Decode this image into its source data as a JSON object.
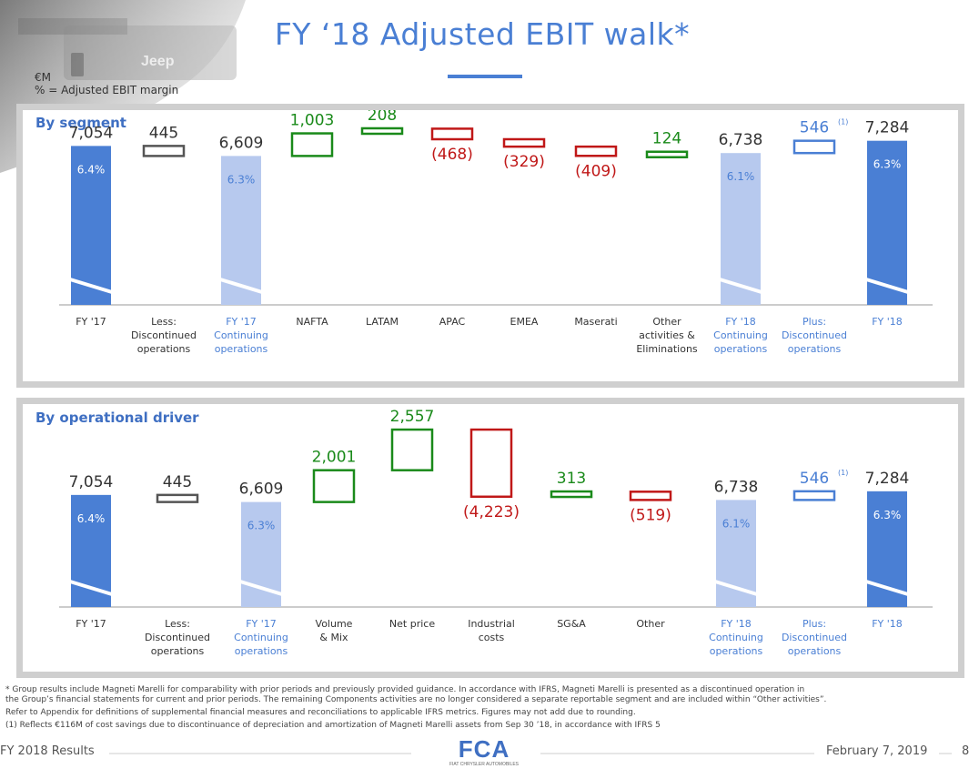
{
  "title": "FY ‘18 Adjusted EBIT walk*",
  "units": {
    "currency": "€M",
    "margin_note": "% = Adjusted EBIT margin"
  },
  "panels": {
    "segment_title": "By segment",
    "driver_title": "By operational driver"
  },
  "colors": {
    "accent": "#4a7fd4",
    "light_bar": "#b7c9ee",
    "positive": "#1a8a1a",
    "negative": "#c01818",
    "neutral": "#555555"
  },
  "chart_data": [
    {
      "type": "waterfall",
      "title": "By segment",
      "unit": "€M",
      "ylim": [
        0,
        8200
      ],
      "steps": [
        {
          "label": "FY '17",
          "kind": "total",
          "style": "dark",
          "value": 7054,
          "display": "7,054",
          "margin": "6.4%"
        },
        {
          "label": "Less: Discontinued operations",
          "kind": "delta",
          "style": "neutral",
          "value": -445,
          "display": "445"
        },
        {
          "label": "FY '17 Continuing operations",
          "kind": "total",
          "style": "light",
          "value": 6609,
          "display": "6,609",
          "margin": "6.3%"
        },
        {
          "label": "NAFTA",
          "kind": "delta",
          "style": "positive",
          "value": 1003,
          "display": "1,003"
        },
        {
          "label": "LATAM",
          "kind": "delta",
          "style": "positive",
          "value": 208,
          "display": "208"
        },
        {
          "label": "APAC",
          "kind": "delta",
          "style": "negative",
          "value": -468,
          "display": "(468)"
        },
        {
          "label": "EMEA",
          "kind": "delta",
          "style": "negative",
          "value": -329,
          "display": "(329)"
        },
        {
          "label": "Maserati",
          "kind": "delta",
          "style": "negative",
          "value": -409,
          "display": "(409)"
        },
        {
          "label": "Other activities & Eliminations",
          "kind": "delta",
          "style": "positive",
          "value": 124,
          "display": "124"
        },
        {
          "label": "FY '18 Continuing operations",
          "kind": "total",
          "style": "light",
          "value": 6738,
          "display": "6,738",
          "margin": "6.1%"
        },
        {
          "label": "Plus: Discontinued operations",
          "kind": "delta",
          "style": "neutral",
          "value": 546,
          "display": "546",
          "note": "(1)"
        },
        {
          "label": "FY '18",
          "kind": "total",
          "style": "dark",
          "value": 7284,
          "display": "7,284",
          "margin": "6.3%"
        }
      ]
    },
    {
      "type": "waterfall",
      "title": "By operational driver",
      "unit": "€M",
      "ylim": [
        0,
        11800
      ],
      "steps": [
        {
          "label": "FY '17",
          "kind": "total",
          "style": "dark",
          "value": 7054,
          "display": "7,054",
          "margin": "6.4%"
        },
        {
          "label": "Less: Discontinued operations",
          "kind": "delta",
          "style": "neutral",
          "value": -445,
          "display": "445"
        },
        {
          "label": "FY '17 Continuing operations",
          "kind": "total",
          "style": "light",
          "value": 6609,
          "display": "6,609",
          "margin": "6.3%"
        },
        {
          "label": "Volume & Mix",
          "kind": "delta",
          "style": "positive",
          "value": 2001,
          "display": "2,001"
        },
        {
          "label": "Net price",
          "kind": "delta",
          "style": "positive",
          "value": 2557,
          "display": "2,557"
        },
        {
          "label": "Industrial costs",
          "kind": "delta",
          "style": "negative",
          "value": -4223,
          "display": "(4,223)"
        },
        {
          "label": "SG&A",
          "kind": "delta",
          "style": "positive",
          "value": 313,
          "display": "313"
        },
        {
          "label": "Other",
          "kind": "delta",
          "style": "negative",
          "value": -519,
          "display": "(519)"
        },
        {
          "label": "FY '18 Continuing operations",
          "kind": "total",
          "style": "light",
          "value": 6738,
          "display": "6,738",
          "margin": "6.1%"
        },
        {
          "label": "Plus: Discontinued operations",
          "kind": "delta",
          "style": "neutral",
          "value": 546,
          "display": "546",
          "note": "(1)"
        },
        {
          "label": "FY '18",
          "kind": "total",
          "style": "dark",
          "value": 7284,
          "display": "7,284",
          "margin": "6.3%"
        }
      ]
    }
  ],
  "footnotes": {
    "asterisk_line1": "*     Group results include Magneti Marelli for comparability with prior periods and previously provided guidance. In accordance with IFRS, Magneti Marelli is presented as a discontinued operation in",
    "asterisk_line2": "       the Group’s financial statements for current and prior periods. The remaining Components activities are no longer considered a separate reportable segment and are included within “Other activities”.",
    "appendix": "Refer to Appendix for definitions of supplemental financial measures and reconciliations to applicable IFRS metrics.  Figures may not add due to rounding.",
    "note1": "(1)  Reflects €116M of cost savings due to discontinuance of depreciation and amortization of Magneti Marelli assets from Sep 30 ’18, in accordance with IFRS 5"
  },
  "footer": {
    "left": "FY 2018 Results",
    "date": "February 7, 2019",
    "page": "8",
    "logo_text": "FCA",
    "logo_sub": "FIAT CHRYSLER AUTOMOBILES",
    "hero_brand": "Jeep"
  }
}
